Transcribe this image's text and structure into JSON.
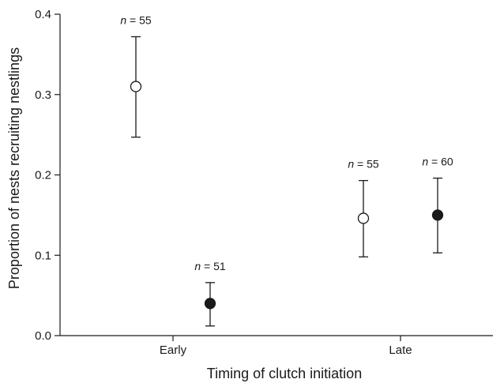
{
  "chart_data": {
    "type": "scatter",
    "xlabel": "Timing of clutch initiation",
    "ylabel": "Proportion of nests recruiting nestlings",
    "categories": [
      "Early",
      "Late"
    ],
    "ylim": [
      0,
      0.4
    ],
    "yticks": [
      "0.0",
      "0.1",
      "0.2",
      "0.3",
      "0.4"
    ],
    "grid": false,
    "legend": "none",
    "series": [
      {
        "marker": "open-circle",
        "points": [
          {
            "category": "Early",
            "y": 0.31,
            "lower": 0.247,
            "upper": 0.372,
            "n_label": "= 55"
          },
          {
            "category": "Late",
            "y": 0.146,
            "lower": 0.098,
            "upper": 0.193,
            "n_label": "= 55"
          }
        ]
      },
      {
        "marker": "filled-circle",
        "points": [
          {
            "category": "Early",
            "y": 0.04,
            "lower": 0.012,
            "upper": 0.066,
            "n_label": "= 51"
          },
          {
            "category": "Late",
            "y": 0.15,
            "lower": 0.103,
            "upper": 0.196,
            "n_label": "= 60"
          }
        ]
      }
    ],
    "n_symbol": "n"
  }
}
